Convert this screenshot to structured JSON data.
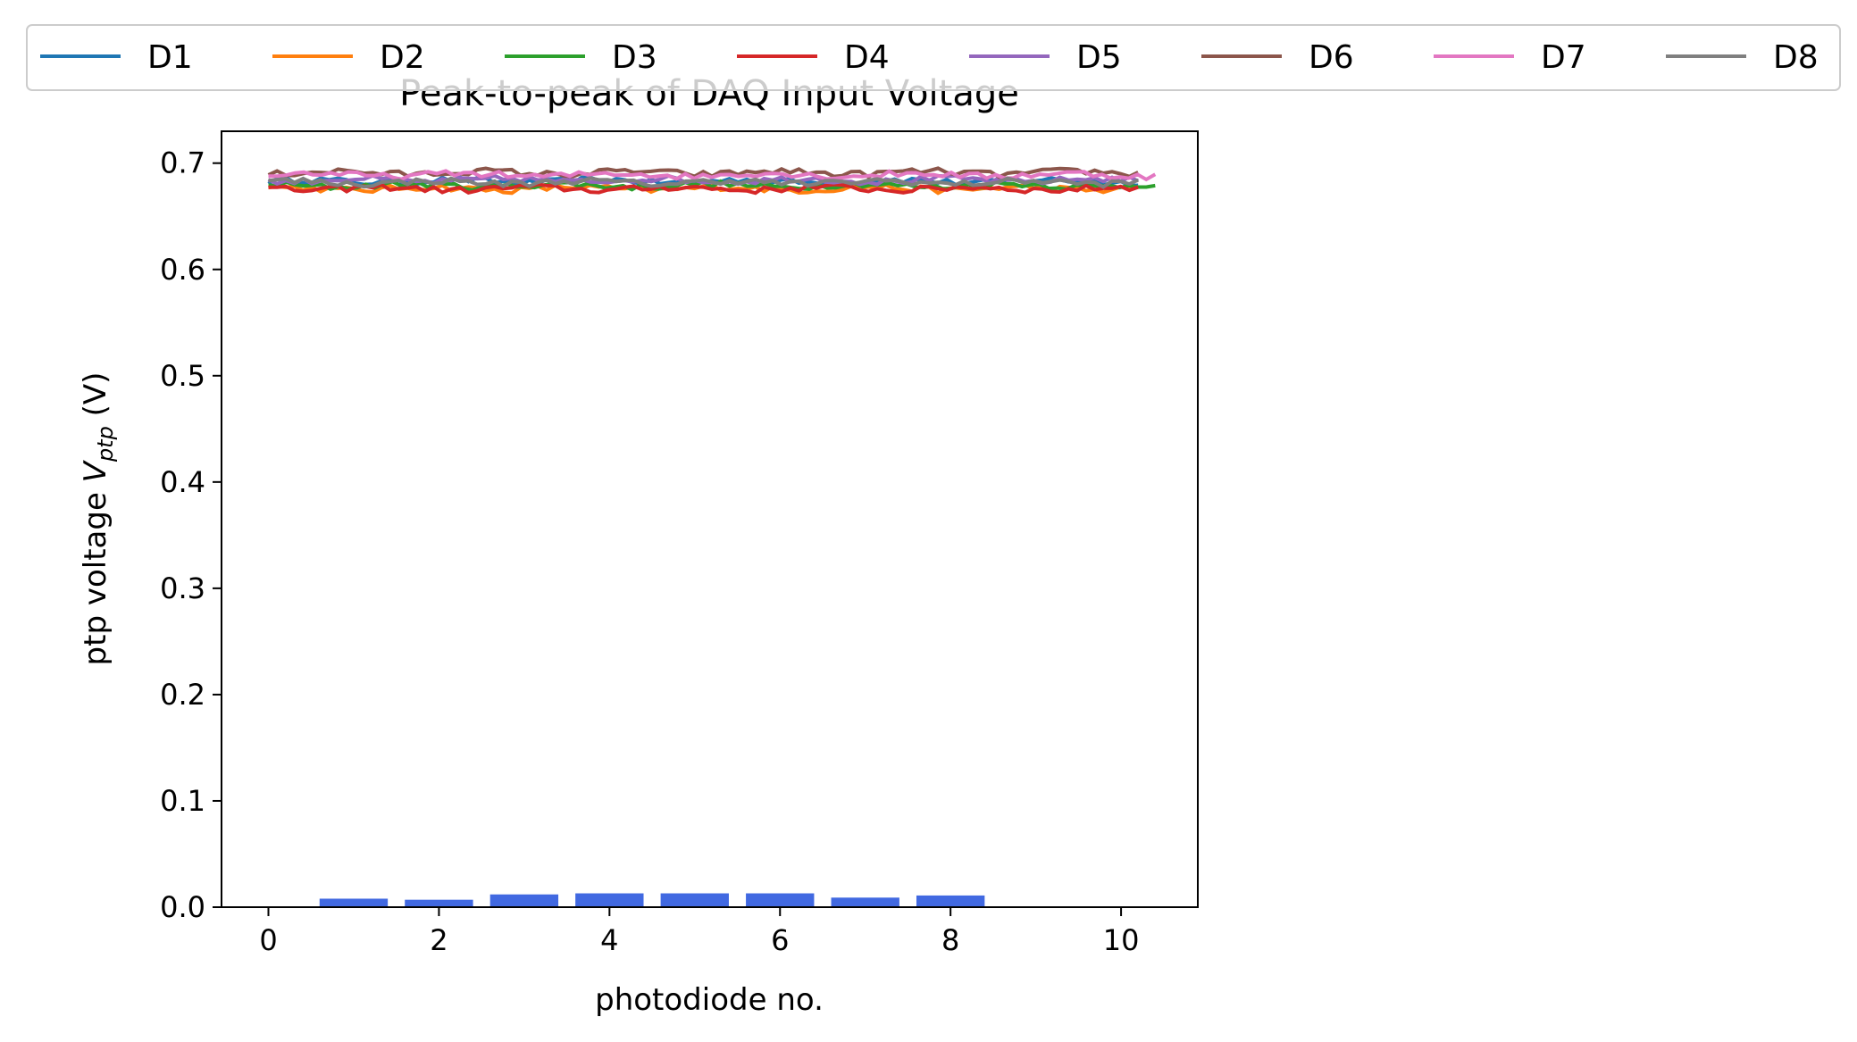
{
  "chart_data": {
    "type": "bar",
    "title": "Peak-to-peak of DAQ Input Voltage",
    "xlabel": "photodiode no.",
    "ylabel_prefix": "ptp voltage ",
    "ylabel_var": "V",
    "ylabel_sub": "ptp",
    "ylabel_suffix": " (V)",
    "xlim": [
      -0.55,
      10.9
    ],
    "ylim": [
      0.0,
      0.73
    ],
    "xticks": [
      0,
      2,
      4,
      6,
      8,
      10
    ],
    "xtick_labels": [
      "0",
      "2",
      "4",
      "6",
      "8",
      "10"
    ],
    "yticks": [
      0.0,
      0.1,
      0.2,
      0.3,
      0.4,
      0.5,
      0.6,
      0.7
    ],
    "ytick_labels": [
      "0.0",
      "0.1",
      "0.2",
      "0.3",
      "0.4",
      "0.5",
      "0.6",
      "0.7"
    ],
    "grid": false,
    "bars": {
      "color": "#4169e1",
      "width": 0.8,
      "x": [
        1,
        2,
        3,
        4,
        5,
        6,
        7,
        8
      ],
      "values": [
        0.008,
        0.007,
        0.012,
        0.013,
        0.013,
        0.013,
        0.009,
        0.011
      ]
    },
    "legend": {
      "placement": "top",
      "ncol": 8
    },
    "series": [
      {
        "name": "D1",
        "color": "#1f77b4",
        "base": 0.683,
        "x_end": 10.2
      },
      {
        "name": "D2",
        "color": "#ff7f0e",
        "base": 0.676,
        "x_end": 10.2
      },
      {
        "name": "D3",
        "color": "#2ca02c",
        "base": 0.679,
        "x_end": 10.4
      },
      {
        "name": "D4",
        "color": "#d62728",
        "base": 0.676,
        "x_end": 10.2
      },
      {
        "name": "D5",
        "color": "#9467bd",
        "base": 0.684,
        "x_end": 10.2
      },
      {
        "name": "D6",
        "color": "#8c564b",
        "base": 0.691,
        "x_end": 10.2
      },
      {
        "name": "D7",
        "color": "#e377c2",
        "base": 0.689,
        "x_end": 10.4
      },
      {
        "name": "D8",
        "color": "#7f7f7f",
        "base": 0.682,
        "x_end": 10.2
      }
    ]
  }
}
